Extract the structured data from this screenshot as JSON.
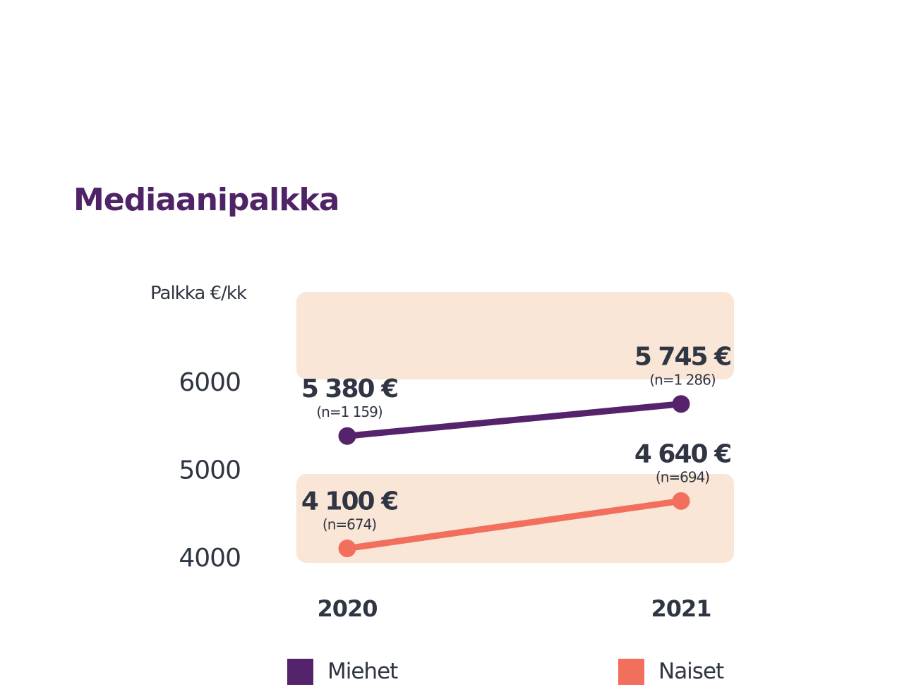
{
  "chart_data": {
    "type": "line",
    "title": "Mediaanipalkka",
    "ylabel": "Palkka €/kk",
    "categories": [
      "2020",
      "2021"
    ],
    "yticks": [
      "6000",
      "5000",
      "4000"
    ],
    "ytick_values": [
      6000,
      5000,
      4000
    ],
    "series": [
      {
        "name": "Miehet",
        "color": "#55236b",
        "values": [
          5380,
          5745
        ],
        "value_labels": [
          "5 380 €",
          "5 745 €"
        ],
        "n_labels": [
          "(n=1 159)",
          "(n=1 286)"
        ]
      },
      {
        "name": "Naiset",
        "color": "#f26f5e",
        "values": [
          4100,
          4640
        ],
        "value_labels": [
          "4 100 €",
          "4 640 €"
        ],
        "n_labels": [
          "(n=674)",
          "(n=694)"
        ]
      }
    ],
    "band_color": "#f9e6d6",
    "grid": false,
    "legend": "bottom"
  }
}
